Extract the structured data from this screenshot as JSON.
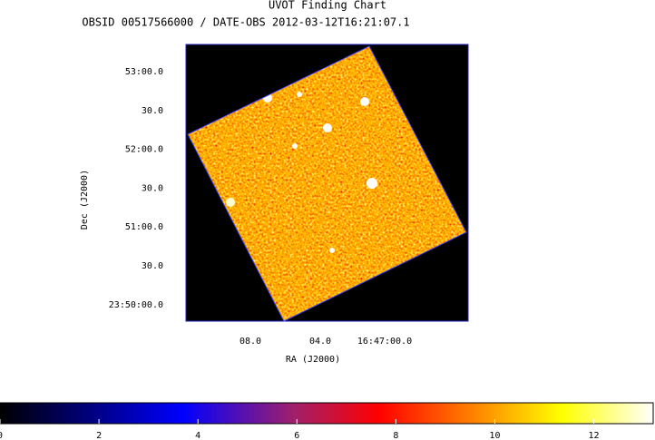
{
  "chart_data": {
    "type": "image",
    "title": "UVOT Finding Chart",
    "subtitle": "OBSID 00517566000 / DATE-OBS 2012-03-12T16:21:07.1",
    "x_label": "RA (J2000)",
    "y_label": "Dec (J2000)",
    "x_tick_labels": [
      "08.0",
      "04.0",
      "16:47:00.0"
    ],
    "y_tick_labels": [
      "53:00.0",
      "30.0",
      "52:00.0",
      "30.0",
      "51:00.0",
      "30.0",
      "23:50:00.0"
    ],
    "colorbar": {
      "lim": [
        0,
        13.2
      ],
      "ticks": [
        0,
        2,
        4,
        6,
        8,
        10,
        12
      ]
    }
  }
}
